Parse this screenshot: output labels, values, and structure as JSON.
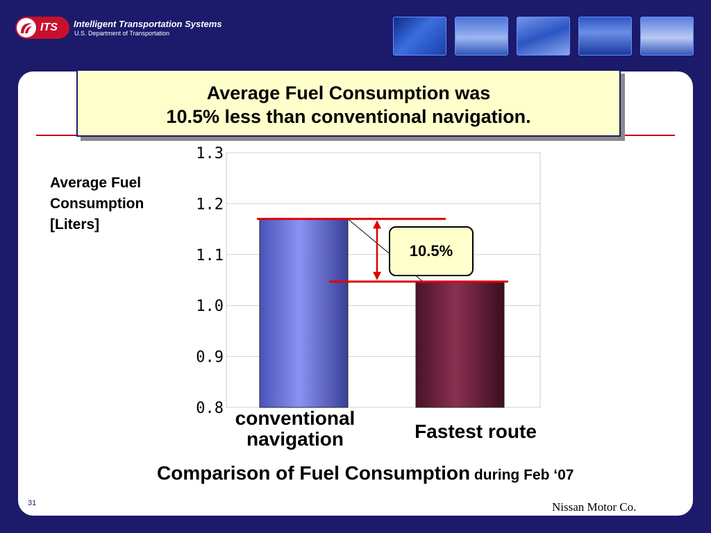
{
  "header": {
    "logo_text": "ITS",
    "org_title": "Intelligent Transportation Systems",
    "org_subtitle": "U.S. Department of Transportation",
    "thumbnails": [
      "tunnel-road-photo",
      "ambulance-truck-photo",
      "traffic-cars-photo",
      "highway-lights-photo",
      "semi-truck-photo"
    ]
  },
  "slide": {
    "title_line1": "Average Fuel Consumption was",
    "title_line2": "10.5% less than conventional navigation.",
    "ylabel_line1": "Average Fuel",
    "ylabel_line2": "Consumption",
    "ylabel_line3": "[Liters]",
    "callout": "10.5%",
    "caption_main": "Comparison of Fuel Consumption",
    "caption_sub": " during Feb ‘07",
    "page_number": "31",
    "credit": "Nissan Motor Co."
  },
  "chart_data": {
    "type": "bar",
    "categories": [
      "conventional navigation",
      "Fastest route"
    ],
    "category_lines": [
      [
        "conventional",
        "navigation"
      ],
      [
        "Fastest route"
      ]
    ],
    "values": [
      1.17,
      1.047
    ],
    "ylim": [
      0.8,
      1.3
    ],
    "yticks": [
      "0.8",
      "0.9",
      "1.0",
      "1.1",
      "1.2",
      "1.3"
    ],
    "grid": true,
    "title": "Comparison of Fuel Consumption during Feb ‘07",
    "ylabel": "Average Fuel Consumption [Liters]",
    "annotation": "10.5%",
    "colors": {
      "bar1": "#8a93f2",
      "bar2": "#8a3050",
      "marker": "#e00000",
      "callout_bg": "#ffffcc"
    }
  }
}
